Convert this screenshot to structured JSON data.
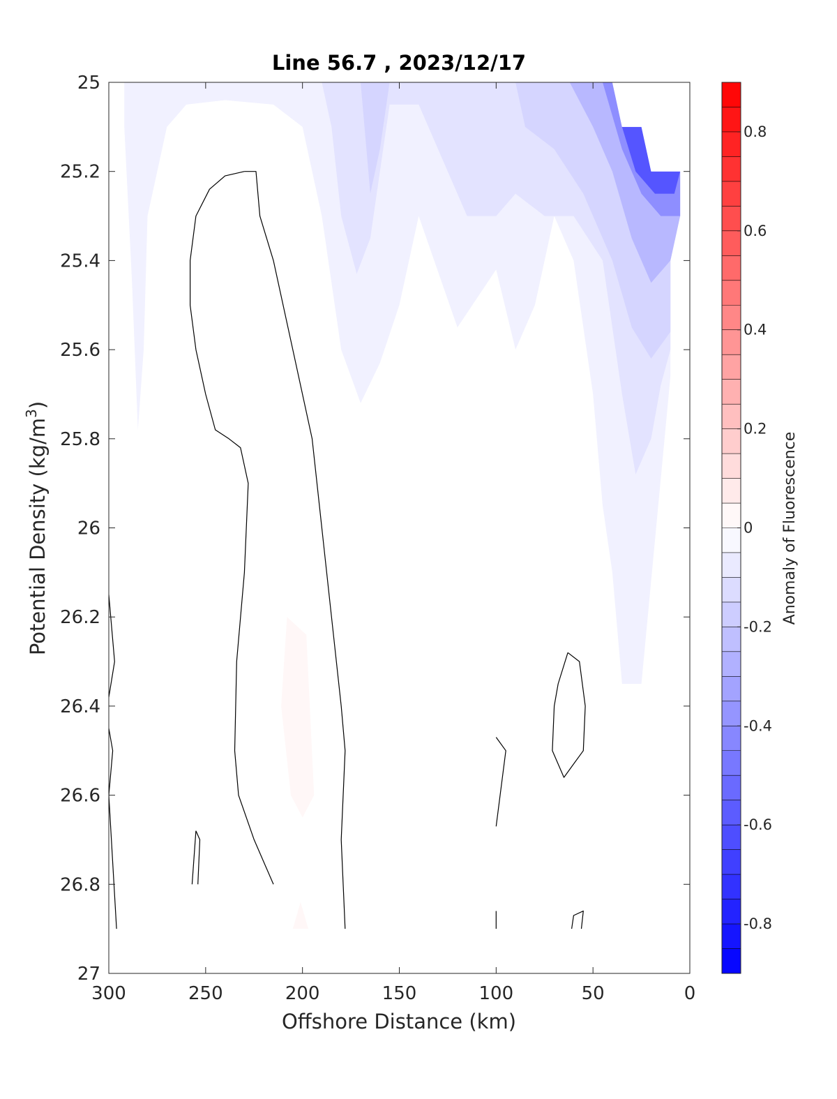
{
  "chart_data": {
    "type": "contour",
    "title": "Line 56.7 , 2023/12/17",
    "xlabel": "Offshore Distance (km)",
    "ylabel_main": "Potential Density (kg/m",
    "ylabel_sup": "3",
    "ylabel_close": ")",
    "xlim": [
      300,
      0
    ],
    "ylim": [
      25,
      27
    ],
    "x_reversed": true,
    "y_reversed": true,
    "xticks": [
      "300",
      "250",
      "200",
      "150",
      "100",
      "50",
      "0"
    ],
    "yticks": [
      "25",
      "25.2",
      "25.4",
      "25.6",
      "25.8",
      "26",
      "26.2",
      "26.4",
      "26.6",
      "26.8",
      "27"
    ],
    "colorbar": {
      "label": "Anomaly of Fluorescence",
      "range": [
        -0.9,
        0.9
      ],
      "level_step": 0.05,
      "ticks": [
        "0.8",
        "0.6",
        "0.4",
        "0.2",
        "0",
        "-0.2",
        "-0.4",
        "-0.6",
        "-0.8"
      ],
      "tick_values": [
        0.8,
        0.6,
        0.4,
        0.2,
        0,
        -0.2,
        -0.4,
        -0.6,
        -0.8
      ],
      "cmap": {
        "low": "#0000ff",
        "mid": "#ffffff",
        "high": "#ff0000"
      }
    },
    "no_data_region": [
      [
        40,
        25
      ],
      [
        0,
        25
      ],
      [
        0,
        25.2
      ],
      [
        20,
        25.2
      ],
      [
        25,
        25.1
      ],
      [
        35,
        25.1
      ]
    ],
    "filled_regions": [
      {
        "anomaly": -0.05,
        "points": [
          [
            292,
            25
          ],
          [
            40,
            25
          ],
          [
            35,
            25.1
          ],
          [
            25,
            25.1
          ],
          [
            20,
            25.2
          ],
          [
            5,
            25.2
          ],
          [
            5,
            25.3
          ],
          [
            10,
            25.4
          ],
          [
            10,
            25.66
          ],
          [
            25,
            26.35
          ],
          [
            35,
            26.35
          ],
          [
            40,
            26.1
          ],
          [
            45,
            25.95
          ],
          [
            50,
            25.7
          ],
          [
            60,
            25.4
          ],
          [
            70,
            25.3
          ],
          [
            80,
            25.5
          ],
          [
            90,
            25.6
          ],
          [
            100,
            25.42
          ],
          [
            120,
            25.55
          ],
          [
            140,
            25.3
          ],
          [
            150,
            25.5
          ],
          [
            160,
            25.63
          ],
          [
            170,
            25.72
          ],
          [
            180,
            25.6
          ],
          [
            190,
            25.3
          ],
          [
            200,
            25.1
          ],
          [
            215,
            25.05
          ],
          [
            240,
            25.04
          ],
          [
            260,
            25.05
          ],
          [
            270,
            25.1
          ],
          [
            280,
            25.3
          ],
          [
            282,
            25.6
          ],
          [
            285,
            25.78
          ],
          [
            288,
            25.45
          ],
          [
            292,
            25.1
          ]
        ]
      },
      {
        "anomaly": -0.1,
        "points": [
          [
            190,
            25
          ],
          [
            40,
            25
          ],
          [
            35,
            25.1
          ],
          [
            25,
            25.1
          ],
          [
            20,
            25.2
          ],
          [
            5,
            25.2
          ],
          [
            5,
            25.3
          ],
          [
            10,
            25.4
          ],
          [
            10,
            25.6
          ],
          [
            15,
            25.68
          ],
          [
            20,
            25.8
          ],
          [
            28,
            25.88
          ],
          [
            35,
            25.7
          ],
          [
            45,
            25.4
          ],
          [
            60,
            25.3
          ],
          [
            75,
            25.3
          ],
          [
            90,
            25.25
          ],
          [
            100,
            25.3
          ],
          [
            115,
            25.3
          ],
          [
            125,
            25.2
          ],
          [
            140,
            25.05
          ],
          [
            155,
            25.05
          ],
          [
            160,
            25.2
          ],
          [
            165,
            25.35
          ],
          [
            172,
            25.43
          ],
          [
            180,
            25.3
          ],
          [
            185,
            25.1
          ]
        ]
      },
      {
        "anomaly": -0.15,
        "points": [
          [
            170,
            25
          ],
          [
            155,
            25
          ],
          [
            160,
            25.15
          ],
          [
            165,
            25.25
          ]
        ]
      },
      {
        "anomaly": -0.15,
        "points": [
          [
            90,
            25
          ],
          [
            40,
            25
          ],
          [
            35,
            25.1
          ],
          [
            25,
            25.1
          ],
          [
            20,
            25.2
          ],
          [
            5,
            25.2
          ],
          [
            5,
            25.3
          ],
          [
            10,
            25.4
          ],
          [
            10,
            25.56
          ],
          [
            20,
            25.62
          ],
          [
            30,
            25.55
          ],
          [
            40,
            25.4
          ],
          [
            55,
            25.25
          ],
          [
            70,
            25.15
          ],
          [
            85,
            25.1
          ]
        ]
      },
      {
        "anomaly": -0.25,
        "points": [
          [
            62,
            25
          ],
          [
            40,
            25
          ],
          [
            35,
            25.1
          ],
          [
            25,
            25.1
          ],
          [
            20,
            25.2
          ],
          [
            5,
            25.2
          ],
          [
            5,
            25.3
          ],
          [
            10,
            25.4
          ],
          [
            20,
            25.45
          ],
          [
            30,
            25.35
          ],
          [
            40,
            25.2
          ],
          [
            50,
            25.1
          ]
        ]
      },
      {
        "anomaly": -0.4,
        "points": [
          [
            45,
            25
          ],
          [
            40,
            25
          ],
          [
            35,
            25.1
          ],
          [
            25,
            25.1
          ],
          [
            20,
            25.2
          ],
          [
            5,
            25.2
          ],
          [
            5,
            25.3
          ],
          [
            15,
            25.3
          ],
          [
            25,
            25.25
          ],
          [
            35,
            25.15
          ]
        ]
      },
      {
        "anomaly": -0.6,
        "points": [
          [
            35,
            25.1
          ],
          [
            25,
            25.1
          ],
          [
            20,
            25.2
          ],
          [
            5,
            25.2
          ],
          [
            8,
            25.25
          ],
          [
            18,
            25.25
          ],
          [
            28,
            25.2
          ]
        ]
      },
      {
        "anomaly": 0.03,
        "points": [
          [
            208,
            26.2
          ],
          [
            198,
            26.24
          ],
          [
            194,
            26.6
          ],
          [
            200,
            26.65
          ],
          [
            206,
            26.6
          ],
          [
            211,
            26.4
          ]
        ]
      },
      {
        "anomaly": 0.03,
        "points": [
          [
            201,
            26.84
          ],
          [
            197,
            26.9
          ],
          [
            205,
            26.9
          ]
        ]
      }
    ],
    "zero_contours": [
      [
        [
          230,
          25.2
        ],
        [
          224,
          25.2
        ],
        [
          222,
          25.3
        ],
        [
          215,
          25.4
        ],
        [
          205,
          25.6
        ],
        [
          195,
          25.8
        ],
        [
          190,
          26.0
        ],
        [
          185,
          26.2
        ],
        [
          180,
          26.4
        ],
        [
          178,
          26.5
        ],
        [
          180,
          26.7
        ],
        [
          178,
          26.9
        ]
      ],
      [
        [
          230,
          25.2
        ],
        [
          240,
          25.21
        ],
        [
          248,
          25.24
        ],
        [
          255,
          25.3
        ],
        [
          258,
          25.4
        ],
        [
          258,
          25.5
        ],
        [
          255,
          25.6
        ],
        [
          250,
          25.7
        ],
        [
          245,
          25.78
        ],
        [
          238,
          25.8
        ],
        [
          232,
          25.82
        ],
        [
          228,
          25.9
        ],
        [
          230,
          26.1
        ],
        [
          234,
          26.3
        ],
        [
          235,
          26.5
        ],
        [
          233,
          26.6
        ],
        [
          225,
          26.7
        ],
        [
          215,
          26.8
        ]
      ],
      [
        [
          300,
          26.15
        ],
        [
          297,
          26.3
        ],
        [
          300,
          26.38
        ]
      ],
      [
        [
          300,
          26.45
        ],
        [
          298,
          26.5
        ],
        [
          300,
          26.6
        ],
        [
          296,
          26.9
        ]
      ],
      [
        [
          255,
          26.68
        ],
        [
          253,
          26.7
        ],
        [
          254,
          26.8
        ]
      ],
      [
        [
          257,
          26.8
        ],
        [
          255,
          26.68
        ]
      ],
      [
        [
          100,
          26.47
        ],
        [
          95,
          26.5
        ],
        [
          100,
          26.67
        ]
      ],
      [
        [
          100,
          26.86
        ],
        [
          100,
          26.9
        ]
      ],
      [
        [
          63,
          26.28
        ],
        [
          68,
          26.35
        ],
        [
          70,
          26.4
        ],
        [
          71,
          26.5
        ],
        [
          65,
          26.56
        ],
        [
          60,
          26.53
        ],
        [
          55,
          26.5
        ],
        [
          54,
          26.4
        ],
        [
          57,
          26.3
        ],
        [
          63,
          26.28
        ]
      ],
      [
        [
          56,
          26.9
        ],
        [
          55,
          26.86
        ],
        [
          60,
          26.87
        ],
        [
          61,
          26.9
        ]
      ]
    ]
  }
}
